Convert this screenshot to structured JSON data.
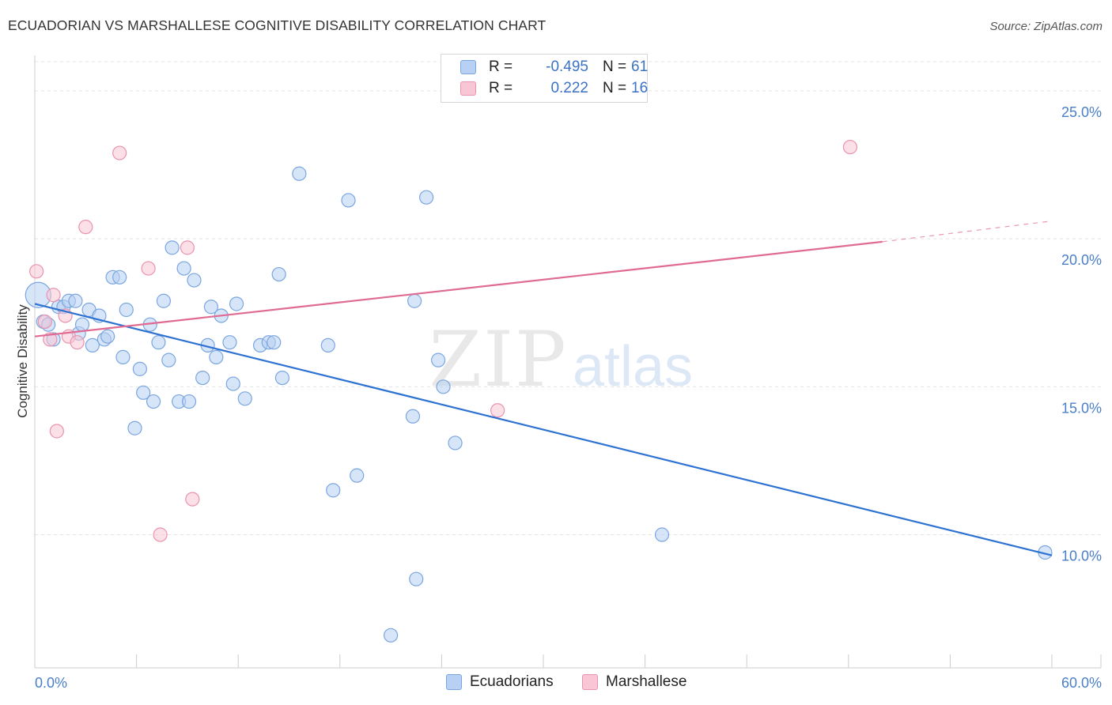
{
  "title": "ECUADORIAN VS MARSHALLESE COGNITIVE DISABILITY CORRELATION CHART",
  "source": "Source: ZipAtlas.com",
  "watermark": {
    "zip": "ZIP",
    "atlas": "atlas"
  },
  "legend_top": [
    {
      "r_label": "R =",
      "r_value": "-0.495",
      "n_label": "N =",
      "n_value": "61"
    },
    {
      "r_label": "R =",
      "r_value": "0.222",
      "n_label": "N =",
      "n_value": "16"
    }
  ],
  "legend_bottom": [
    "Ecuadorians",
    "Marshallese"
  ],
  "colors": {
    "ecuadorian_fill": "#b7d0f3",
    "ecuadorian_stroke": "#7aa6df",
    "ecuadorian_line": "#2d72d2",
    "marshallese_fill": "#f8c6d5",
    "marshallese_stroke": "#ea93ae",
    "marshallese_line": "#e06b92",
    "tick_label": "#4a7fc8",
    "grid": "#e4e4e4",
    "axis": "#cccccc"
  },
  "chart_data": {
    "type": "scatter",
    "title": "ECUADORIAN VS MARSHALLESE COGNITIVE DISABILITY CORRELATION CHART",
    "xlabel": "",
    "ylabel": "Cognitive Disability",
    "xlim": [
      0,
      60
    ],
    "ylim": [
      5.5,
      26.2
    ],
    "x_tick_labels": [
      {
        "value": 0,
        "label": "0.0%"
      },
      {
        "value": 60,
        "label": "60.0%"
      }
    ],
    "y_ticks": [
      {
        "value": 25,
        "label": "25.0%"
      },
      {
        "value": 20,
        "label": "20.0%"
      },
      {
        "value": 15,
        "label": "15.0%"
      },
      {
        "value": 10,
        "label": "10.0%"
      }
    ],
    "x_minor_ticks": [
      6,
      12,
      18,
      24,
      30,
      36,
      42,
      48,
      54,
      60
    ],
    "grid": true,
    "series": [
      {
        "name": "Ecuadorians",
        "r": -0.495,
        "n": 61,
        "trend": {
          "x": [
            0,
            60
          ],
          "y": [
            17.8,
            9.3
          ],
          "dashed_extension": false
        },
        "points": [
          {
            "x": 0.2,
            "y": 18.1,
            "big": true
          },
          {
            "x": 0.5,
            "y": 17.2
          },
          {
            "x": 0.8,
            "y": 17.1
          },
          {
            "x": 1.1,
            "y": 16.6
          },
          {
            "x": 1.4,
            "y": 17.7
          },
          {
            "x": 1.7,
            "y": 17.7
          },
          {
            "x": 2.0,
            "y": 17.9
          },
          {
            "x": 2.4,
            "y": 17.9
          },
          {
            "x": 2.6,
            "y": 16.8
          },
          {
            "x": 2.8,
            "y": 17.1
          },
          {
            "x": 3.2,
            "y": 17.6
          },
          {
            "x": 3.4,
            "y": 16.4
          },
          {
            "x": 3.8,
            "y": 17.4
          },
          {
            "x": 4.1,
            "y": 16.6
          },
          {
            "x": 4.3,
            "y": 16.7
          },
          {
            "x": 4.6,
            "y": 18.7
          },
          {
            "x": 5.0,
            "y": 18.7
          },
          {
            "x": 5.2,
            "y": 16.0
          },
          {
            "x": 5.4,
            "y": 17.6
          },
          {
            "x": 5.9,
            "y": 13.6
          },
          {
            "x": 6.2,
            "y": 15.6
          },
          {
            "x": 6.4,
            "y": 14.8
          },
          {
            "x": 6.8,
            "y": 17.1
          },
          {
            "x": 7.0,
            "y": 14.5
          },
          {
            "x": 7.3,
            "y": 16.5
          },
          {
            "x": 7.6,
            "y": 17.9
          },
          {
            "x": 7.9,
            "y": 15.9
          },
          {
            "x": 8.1,
            "y": 19.7
          },
          {
            "x": 8.5,
            "y": 14.5
          },
          {
            "x": 8.8,
            "y": 19.0
          },
          {
            "x": 9.1,
            "y": 14.5
          },
          {
            "x": 9.4,
            "y": 18.6
          },
          {
            "x": 9.9,
            "y": 15.3
          },
          {
            "x": 10.2,
            "y": 16.4
          },
          {
            "x": 10.4,
            "y": 17.7
          },
          {
            "x": 10.7,
            "y": 16.0
          },
          {
            "x": 11.0,
            "y": 17.4
          },
          {
            "x": 11.5,
            "y": 16.5
          },
          {
            "x": 11.7,
            "y": 15.1
          },
          {
            "x": 11.9,
            "y": 17.8
          },
          {
            "x": 12.4,
            "y": 14.6
          },
          {
            "x": 13.3,
            "y": 16.4
          },
          {
            "x": 13.8,
            "y": 16.5
          },
          {
            "x": 14.1,
            "y": 16.5
          },
          {
            "x": 14.4,
            "y": 18.8
          },
          {
            "x": 14.6,
            "y": 15.3
          },
          {
            "x": 15.6,
            "y": 22.2
          },
          {
            "x": 17.3,
            "y": 16.4
          },
          {
            "x": 17.6,
            "y": 11.5
          },
          {
            "x": 18.5,
            "y": 21.3
          },
          {
            "x": 19.0,
            "y": 12.0
          },
          {
            "x": 21.0,
            "y": 6.6
          },
          {
            "x": 22.3,
            "y": 14.0
          },
          {
            "x": 22.4,
            "y": 17.9
          },
          {
            "x": 22.5,
            "y": 8.5
          },
          {
            "x": 23.1,
            "y": 21.4
          },
          {
            "x": 23.8,
            "y": 15.9
          },
          {
            "x": 24.1,
            "y": 15.0
          },
          {
            "x": 24.8,
            "y": 13.1
          },
          {
            "x": 37.0,
            "y": 10.0
          },
          {
            "x": 59.6,
            "y": 9.4
          }
        ]
      },
      {
        "name": "Marshallese",
        "r": 0.222,
        "n": 16,
        "trend": {
          "x": [
            0,
            50
          ],
          "y": [
            16.7,
            19.9
          ],
          "dashed_to": [
            60,
            20.6
          ]
        },
        "points": [
          {
            "x": 0.1,
            "y": 18.9
          },
          {
            "x": 0.6,
            "y": 17.2
          },
          {
            "x": 0.9,
            "y": 16.6
          },
          {
            "x": 1.3,
            "y": 13.5
          },
          {
            "x": 1.1,
            "y": 18.1
          },
          {
            "x": 1.8,
            "y": 17.4
          },
          {
            "x": 2.0,
            "y": 16.7
          },
          {
            "x": 2.5,
            "y": 16.5
          },
          {
            "x": 3.0,
            "y": 20.4
          },
          {
            "x": 5.0,
            "y": 22.9
          },
          {
            "x": 6.7,
            "y": 19.0
          },
          {
            "x": 7.4,
            "y": 10.0
          },
          {
            "x": 9.0,
            "y": 19.7
          },
          {
            "x": 9.3,
            "y": 11.2
          },
          {
            "x": 27.3,
            "y": 14.2
          },
          {
            "x": 48.1,
            "y": 23.1
          }
        ]
      }
    ]
  }
}
